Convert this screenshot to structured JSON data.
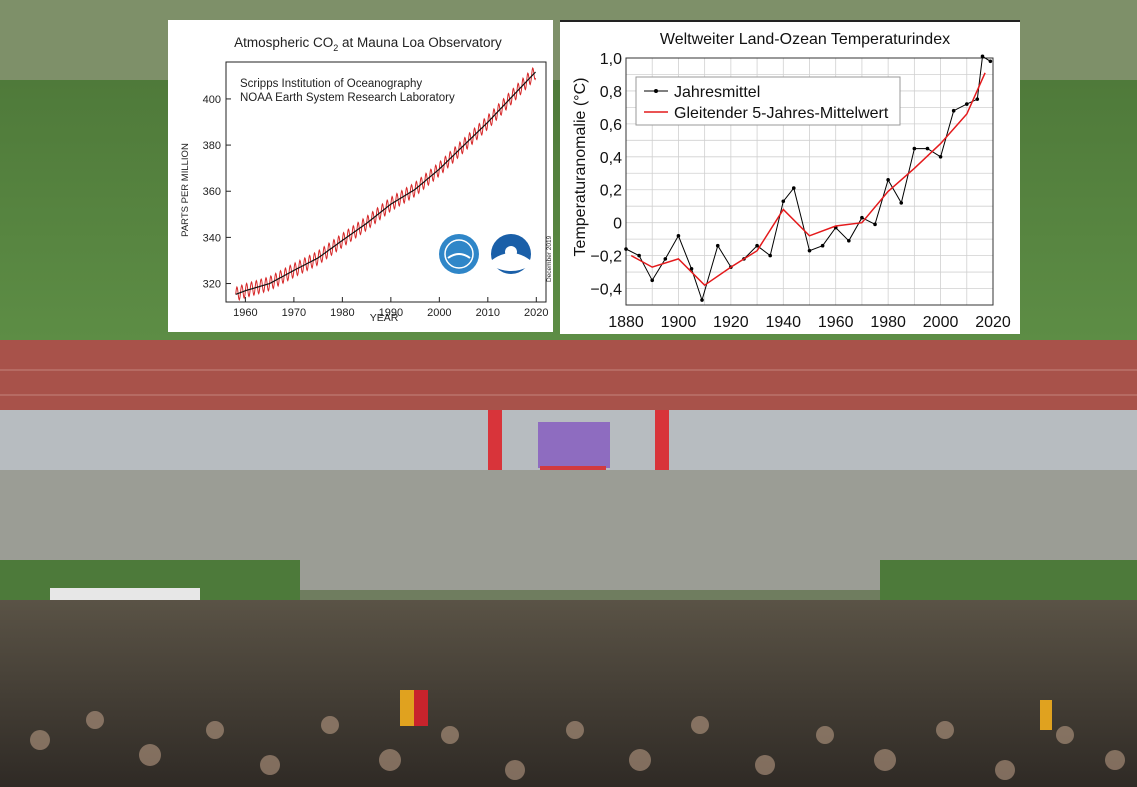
{
  "chart_data": [
    {
      "type": "line",
      "title": "Atmospheric CO",
      "title_subscript": "2",
      "title_suffix": " at Mauna Loa Observatory",
      "annotations": [
        "Scripps Institution of Oceanography",
        "NOAA Earth System Research Laboratory",
        "December 2019"
      ],
      "xlabel": "YEAR",
      "ylabel": "PARTS PER MILLION",
      "xlim": [
        1956,
        2022
      ],
      "ylim": [
        312,
        416
      ],
      "x_ticks": [
        "1960",
        "1970",
        "1980",
        "1990",
        "2000",
        "2010",
        "2020"
      ],
      "y_ticks": [
        "320",
        "340",
        "360",
        "380",
        "400"
      ],
      "grid": false,
      "series": [
        {
          "color": "#d62728",
          "x": [
            1958,
            1960,
            1965,
            1970,
            1975,
            1980,
            1985,
            1990,
            1995,
            2000,
            2005,
            2010,
            2015,
            2019.9
          ],
          "values": [
            315.3,
            316.9,
            320.0,
            325.7,
            331.1,
            338.7,
            346.1,
            354.4,
            360.8,
            369.6,
            379.8,
            389.9,
            401.0,
            411.8
          ]
        }
      ]
    },
    {
      "type": "line",
      "title": "Weltweiter Land-Ozean Temperaturindex",
      "ylabel": "Temperaturanomalie (°C)",
      "xlabel": "",
      "xlim": [
        1880,
        2020
      ],
      "ylim": [
        -0.5,
        1.0
      ],
      "x_ticks": [
        "1880",
        "1900",
        "1920",
        "1940",
        "1960",
        "1980",
        "2000",
        "2020"
      ],
      "y_ticks": [
        "1,0",
        "0,8",
        "0,6",
        "0,4",
        "0,2",
        "0",
        "−0,2",
        "−0,4"
      ],
      "grid": true,
      "legend": "top-left",
      "series": [
        {
          "name": "Jahresmittel",
          "color": "#000000",
          "x": [
            1880,
            1885,
            1890,
            1895,
            1900,
            1905,
            1909,
            1915,
            1920,
            1925,
            1930,
            1935,
            1940,
            1944,
            1950,
            1955,
            1960,
            1965,
            1970,
            1975,
            1980,
            1985,
            1990,
            1995,
            2000,
            2005,
            2010,
            2014,
            2016,
            2019
          ],
          "values": [
            -0.16,
            -0.2,
            -0.35,
            -0.22,
            -0.08,
            -0.28,
            -0.47,
            -0.14,
            -0.27,
            -0.22,
            -0.14,
            -0.2,
            0.13,
            0.21,
            -0.17,
            -0.14,
            -0.03,
            -0.11,
            0.03,
            -0.01,
            0.26,
            0.12,
            0.45,
            0.45,
            0.4,
            0.68,
            0.72,
            0.75,
            1.01,
            0.98
          ]
        },
        {
          "name": "Gleitender 5-Jahres-Mittelwert",
          "color": "#e41a1c",
          "x": [
            1882,
            1890,
            1900,
            1910,
            1920,
            1930,
            1940,
            1950,
            1960,
            1970,
            1980,
            1990,
            2000,
            2010,
            2017
          ],
          "values": [
            -0.2,
            -0.27,
            -0.22,
            -0.38,
            -0.27,
            -0.17,
            0.08,
            -0.08,
            -0.02,
            0.0,
            0.19,
            0.33,
            0.48,
            0.66,
            0.91
          ]
        }
      ]
    }
  ]
}
